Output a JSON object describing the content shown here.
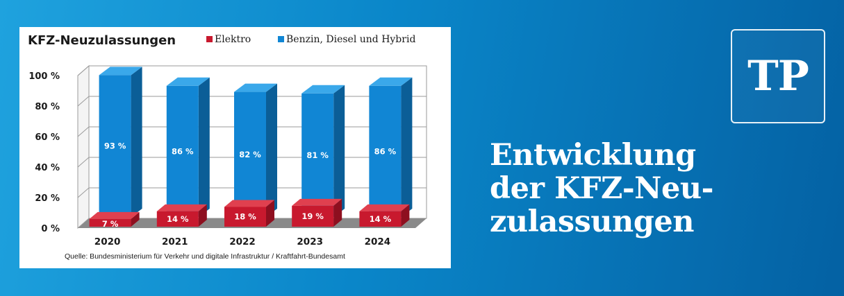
{
  "headline": {
    "line1": "Entwicklung",
    "line2": "der KFZ-Neu-",
    "line3": "zulassungen"
  },
  "logo": {
    "text": "TP"
  },
  "colors": {
    "elektro": "#c8192e",
    "benzin": "#1186d4",
    "background": "#0a86c9"
  },
  "chart_data": {
    "type": "bar",
    "title": "KFZ-Neuzulassungen",
    "categories": [
      "2020",
      "2021",
      "2022",
      "2023",
      "2024"
    ],
    "series": [
      {
        "name": "Elektro",
        "values": [
          7,
          14,
          18,
          19,
          14
        ],
        "labels": [
          "7 %",
          "14 %",
          "18 %",
          "19 %",
          "14 %"
        ]
      },
      {
        "name": "Benzin, Diesel und Hybrid",
        "values": [
          93,
          86,
          82,
          81,
          86
        ],
        "labels": [
          "93 %",
          "86 %",
          "82 %",
          "81 %",
          "86 %"
        ]
      }
    ],
    "yticks": [
      "0 %",
      "20 %",
      "40 %",
      "60 %",
      "80 %",
      "100 %"
    ],
    "ylim": [
      0,
      100
    ],
    "grid": true,
    "legend": "top",
    "source": "Quelle: Bundesministerium für Verkehr und digitale Infrastruktur / Kraftfahrt-Bundesamt"
  }
}
